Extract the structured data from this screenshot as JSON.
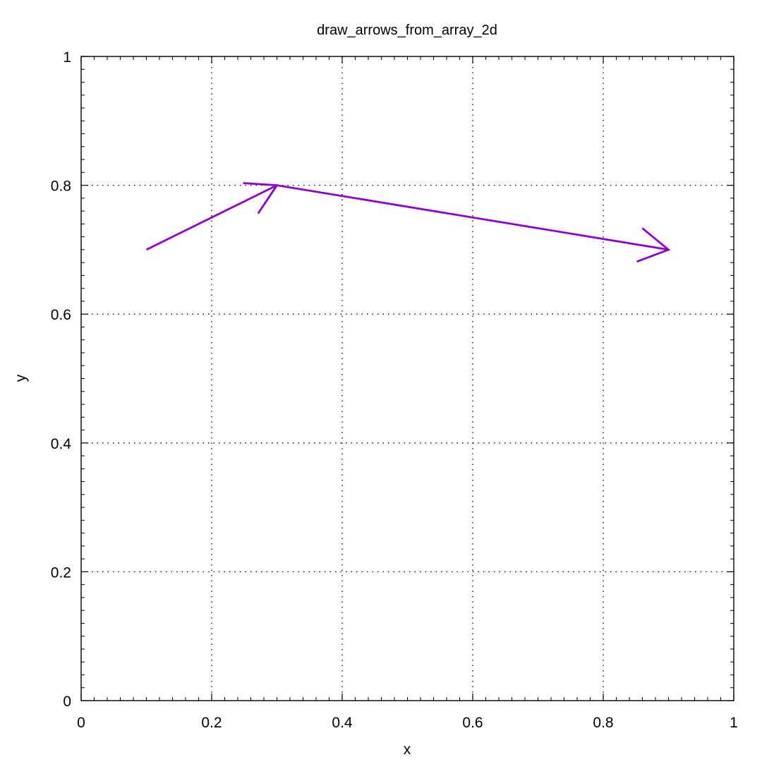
{
  "chart_data": {
    "type": "line",
    "title": "draw_arrows_from_array_2d",
    "xlabel": "x",
    "ylabel": "y",
    "xlim": [
      0,
      1
    ],
    "ylim": [
      0,
      1
    ],
    "x_ticks": [
      0,
      0.2,
      0.4,
      0.6,
      0.8,
      1
    ],
    "y_ticks": [
      0,
      0.2,
      0.4,
      0.6,
      0.8,
      1
    ],
    "x_tick_labels": [
      "0",
      "0.2",
      "0.4",
      "0.6",
      "0.8",
      "1"
    ],
    "y_tick_labels": [
      "0",
      "0.2",
      "0.4",
      "0.6",
      "0.8",
      "1"
    ],
    "grid": true,
    "arrow_color": "#9400D3",
    "series": [
      {
        "arrows": [
          {
            "from": [
              0.1,
              0.7
            ],
            "to": [
              0.3,
              0.8
            ]
          },
          {
            "from": [
              0.3,
              0.8
            ],
            "to": [
              0.9,
              0.7
            ]
          }
        ]
      }
    ]
  }
}
